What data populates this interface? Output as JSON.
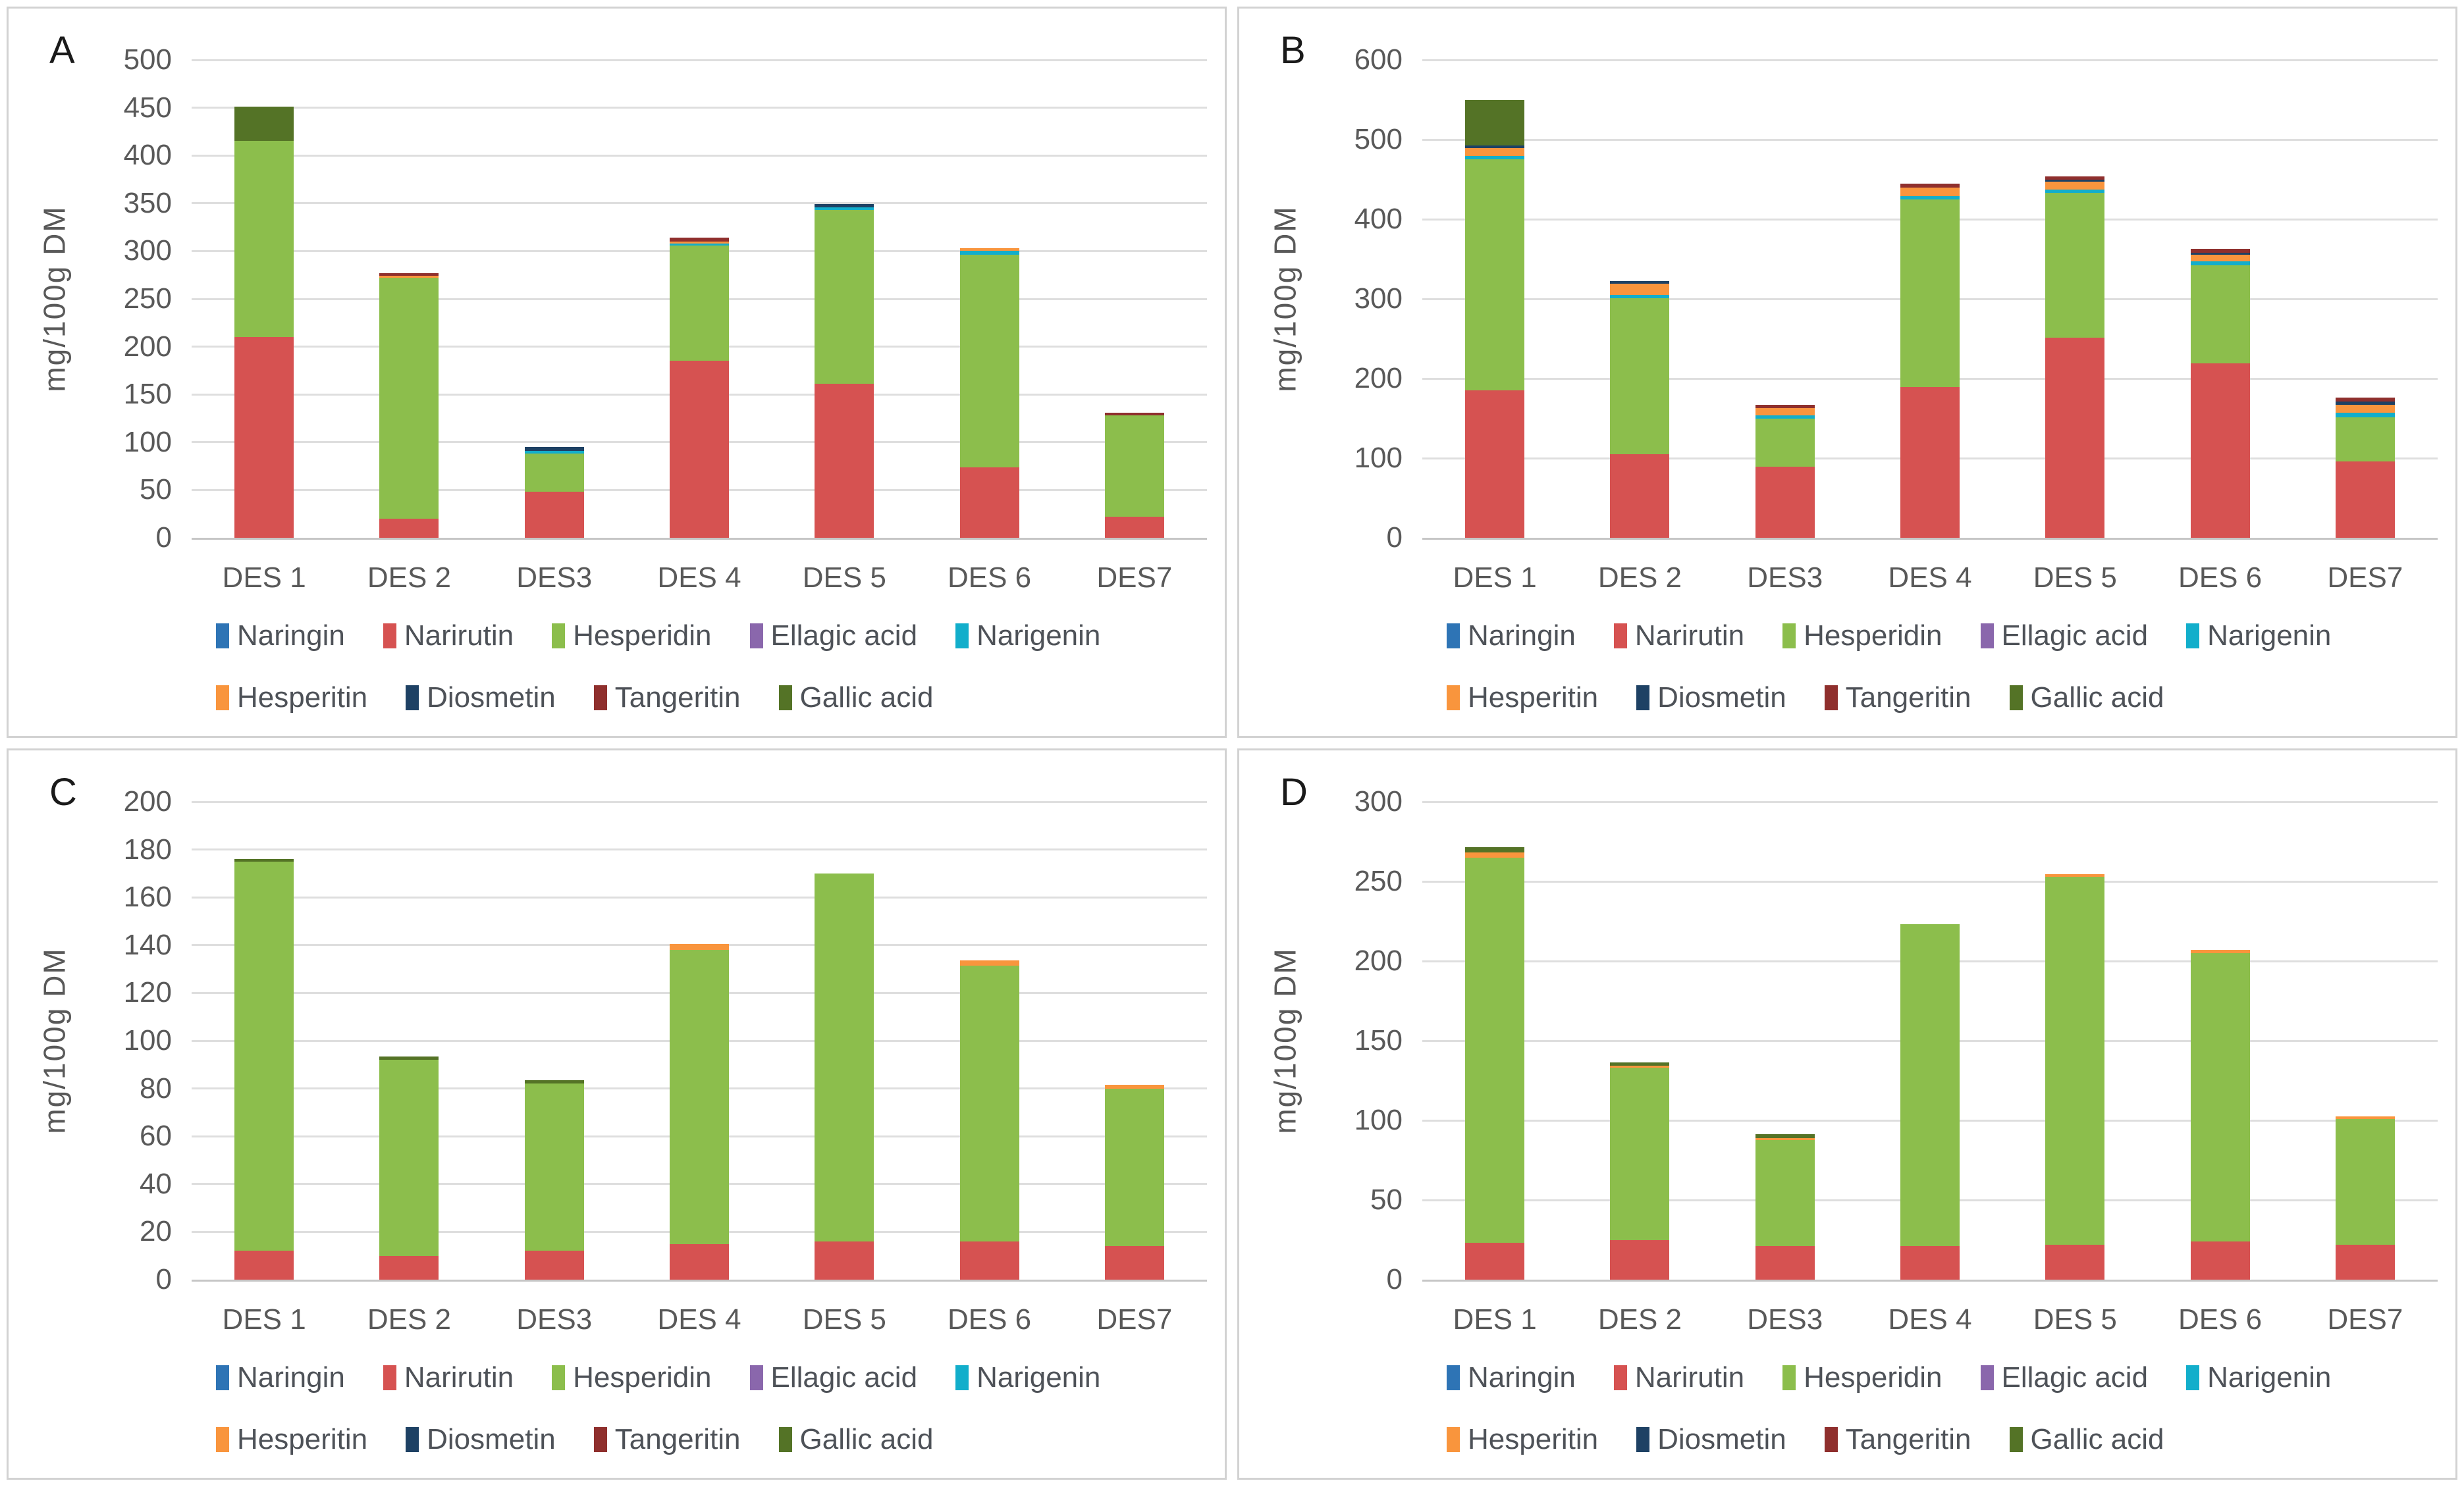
{
  "ui": {
    "panel_labels": [
      "A",
      "B",
      "C",
      "D"
    ]
  },
  "chart_data": [
    {
      "panel_label": "A",
      "type": "bar",
      "stacked": true,
      "title": "",
      "ylabel": "mg/100g DM",
      "xlabel": "",
      "ylim": [
        0,
        500
      ],
      "ystep": 50,
      "grid": true,
      "legend_position": "bottom",
      "categories": [
        "DES 1",
        "DES 2",
        "DES3",
        "DES 4",
        "DES 5",
        "DES 6",
        "DES7"
      ],
      "series": [
        {
          "name": "Naringin",
          "color": "#2e74b5",
          "values": [
            0,
            0,
            0,
            0,
            0,
            0,
            0
          ]
        },
        {
          "name": "Narirutin",
          "color": "#d65251",
          "values": [
            210,
            20,
            48,
            185,
            161,
            74,
            22
          ]
        },
        {
          "name": "Hesperidin",
          "color": "#8cbe4c",
          "values": [
            205,
            252,
            40,
            121,
            182,
            222,
            106
          ]
        },
        {
          "name": "Ellagic acid",
          "color": "#8a67ac",
          "values": [
            0,
            0,
            0,
            0,
            0,
            0,
            0
          ]
        },
        {
          "name": "Narigenin",
          "color": "#12aecb",
          "values": [
            0,
            0,
            3,
            2,
            3,
            4,
            0
          ]
        },
        {
          "name": "Hesperitin",
          "color": "#f9953d",
          "values": [
            0,
            2,
            0,
            2,
            0,
            3,
            0
          ]
        },
        {
          "name": "Diosmetin",
          "color": "#1e4164",
          "values": [
            0,
            0,
            4,
            0,
            3,
            0,
            0
          ]
        },
        {
          "name": "Tangeritin",
          "color": "#8f2f2d",
          "values": [
            0,
            3,
            0,
            4,
            0,
            0,
            3
          ]
        },
        {
          "name": "Gallic acid",
          "color": "#547326",
          "values": [
            36,
            0,
            0,
            0,
            0,
            0,
            0
          ]
        }
      ]
    },
    {
      "panel_label": "B",
      "type": "bar",
      "stacked": true,
      "title": "",
      "ylabel": "mg/100g DM",
      "xlabel": "",
      "ylim": [
        0,
        600
      ],
      "ystep": 100,
      "grid": true,
      "legend_position": "bottom",
      "categories": [
        "DES 1",
        "DES 2",
        "DES3",
        "DES 4",
        "DES 5",
        "DES 6",
        "DES7"
      ],
      "series": [
        {
          "name": "Naringin",
          "color": "#2e74b5",
          "values": [
            0,
            0,
            0,
            0,
            0,
            0,
            0
          ]
        },
        {
          "name": "Narirutin",
          "color": "#d65251",
          "values": [
            185,
            105,
            89,
            189,
            251,
            219,
            96
          ]
        },
        {
          "name": "Hesperidin",
          "color": "#8cbe4c",
          "values": [
            290,
            196,
            61,
            236,
            182,
            123,
            55
          ]
        },
        {
          "name": "Ellagic acid",
          "color": "#8a67ac",
          "values": [
            0,
            0,
            0,
            0,
            0,
            0,
            0
          ]
        },
        {
          "name": "Narigenin",
          "color": "#12aecb",
          "values": [
            4,
            4,
            4,
            4,
            4,
            5,
            6
          ]
        },
        {
          "name": "Hesperitin",
          "color": "#f9953d",
          "values": [
            10,
            14,
            9,
            11,
            10,
            8,
            10
          ]
        },
        {
          "name": "Diosmetin",
          "color": "#1e4164",
          "values": [
            4,
            3,
            0,
            0,
            3,
            3,
            4
          ]
        },
        {
          "name": "Tangeritin",
          "color": "#8f2f2d",
          "values": [
            0,
            0,
            4,
            5,
            4,
            5,
            5
          ]
        },
        {
          "name": "Gallic acid",
          "color": "#547326",
          "values": [
            57,
            0,
            0,
            0,
            0,
            0,
            0
          ]
        }
      ]
    },
    {
      "panel_label": "C",
      "type": "bar",
      "stacked": true,
      "title": "",
      "ylabel": "mg/100g DM",
      "xlabel": "",
      "ylim": [
        0,
        200
      ],
      "ystep": 20,
      "grid": true,
      "legend_position": "bottom",
      "categories": [
        "DES 1",
        "DES 2",
        "DES3",
        "DES 4",
        "DES 5",
        "DES 6",
        "DES7"
      ],
      "series": [
        {
          "name": "Naringin",
          "color": "#2e74b5",
          "values": [
            0,
            0,
            0,
            0,
            0,
            0,
            0
          ]
        },
        {
          "name": "Narirutin",
          "color": "#d65251",
          "values": [
            12,
            10,
            12,
            15,
            16,
            16,
            14
          ]
        },
        {
          "name": "Hesperidin",
          "color": "#8cbe4c",
          "values": [
            163,
            82,
            70,
            123,
            154,
            115.5,
            66
          ]
        },
        {
          "name": "Ellagic acid",
          "color": "#8a67ac",
          "values": [
            0,
            0,
            0,
            0,
            0,
            0,
            0
          ]
        },
        {
          "name": "Narigenin",
          "color": "#12aecb",
          "values": [
            0,
            0,
            0,
            0,
            0,
            0,
            0
          ]
        },
        {
          "name": "Hesperitin",
          "color": "#f9953d",
          "values": [
            0,
            0,
            0,
            2.5,
            0,
            2,
            1.5
          ]
        },
        {
          "name": "Diosmetin",
          "color": "#1e4164",
          "values": [
            0,
            0,
            0,
            0,
            0,
            0,
            0
          ]
        },
        {
          "name": "Tangeritin",
          "color": "#8f2f2d",
          "values": [
            0,
            0,
            0,
            0,
            0,
            0,
            0
          ]
        },
        {
          "name": "Gallic acid",
          "color": "#547326",
          "values": [
            1,
            1.5,
            1.5,
            0,
            0,
            0,
            0
          ]
        }
      ]
    },
    {
      "panel_label": "D",
      "type": "bar",
      "stacked": true,
      "title": "",
      "ylabel": "mg/100g DM",
      "xlabel": "",
      "ylim": [
        0,
        300
      ],
      "ystep": 50,
      "grid": true,
      "legend_position": "bottom",
      "categories": [
        "DES 1",
        "DES 2",
        "DES3",
        "DES 4",
        "DES 5",
        "DES 6",
        "DES7"
      ],
      "series": [
        {
          "name": "Naringin",
          "color": "#2e74b5",
          "values": [
            0,
            0,
            0,
            0,
            0,
            0,
            0
          ]
        },
        {
          "name": "Narirutin",
          "color": "#d65251",
          "values": [
            23,
            25,
            21,
            21,
            22,
            24,
            22
          ]
        },
        {
          "name": "Hesperidin",
          "color": "#8cbe4c",
          "values": [
            242,
            108,
            66.5,
            202,
            231,
            181,
            79
          ]
        },
        {
          "name": "Ellagic acid",
          "color": "#8a67ac",
          "values": [
            0,
            0,
            0,
            0,
            0,
            0,
            0
          ]
        },
        {
          "name": "Narigenin",
          "color": "#12aecb",
          "values": [
            0,
            0,
            0,
            0,
            0,
            0,
            0
          ]
        },
        {
          "name": "Hesperitin",
          "color": "#f9953d",
          "values": [
            3,
            1.5,
            1.5,
            0,
            1.5,
            2,
            1.5
          ]
        },
        {
          "name": "Diosmetin",
          "color": "#1e4164",
          "values": [
            0,
            0,
            0,
            0,
            0,
            0,
            0
          ]
        },
        {
          "name": "Tangeritin",
          "color": "#8f2f2d",
          "values": [
            0,
            0,
            0,
            0,
            0,
            0,
            0
          ]
        },
        {
          "name": "Gallic acid",
          "color": "#547326",
          "values": [
            3.5,
            2,
            2.5,
            0,
            0,
            0,
            0
          ]
        }
      ]
    }
  ]
}
